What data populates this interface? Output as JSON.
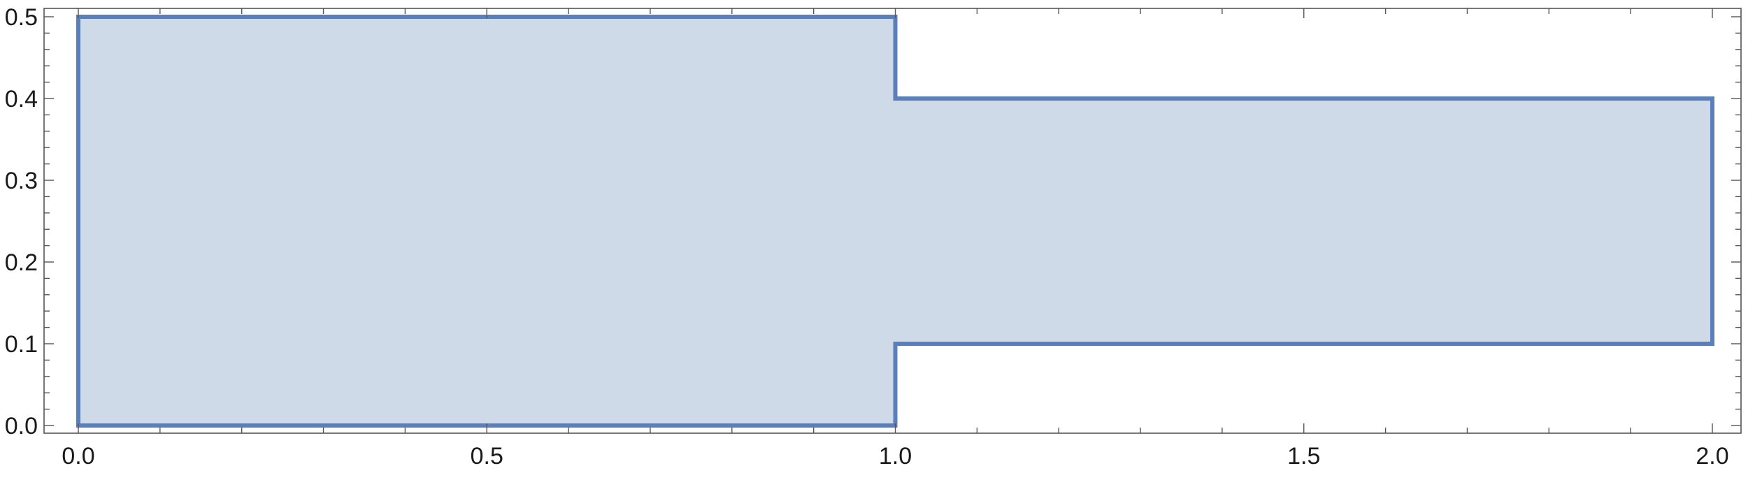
{
  "chart_data": {
    "type": "area",
    "title": "",
    "xlabel": "",
    "ylabel": "",
    "xlim": [
      0,
      2
    ],
    "ylim": [
      0,
      0.5
    ],
    "x_ticks": [
      0.0,
      0.5,
      1.0,
      1.5,
      2.0
    ],
    "x_tick_labels": [
      "0.0",
      "0.5",
      "1.0",
      "1.5",
      "2.0"
    ],
    "y_ticks": [
      0.0,
      0.1,
      0.2,
      0.3,
      0.4,
      0.5
    ],
    "y_tick_labels": [
      "0.0",
      "0.1",
      "0.2",
      "0.3",
      "0.4",
      "0.5"
    ],
    "grid": false,
    "series": [
      {
        "polygon": [
          [
            0,
            0
          ],
          [
            1,
            0
          ],
          [
            1,
            0.1
          ],
          [
            2,
            0.1
          ],
          [
            2,
            0.4
          ],
          [
            1,
            0.4
          ],
          [
            1,
            0.5
          ],
          [
            0,
            0.5
          ]
        ]
      }
    ],
    "colors": {
      "fill": "#cfdae9",
      "stroke": "#5b7fb8",
      "axis": "#555555"
    }
  }
}
